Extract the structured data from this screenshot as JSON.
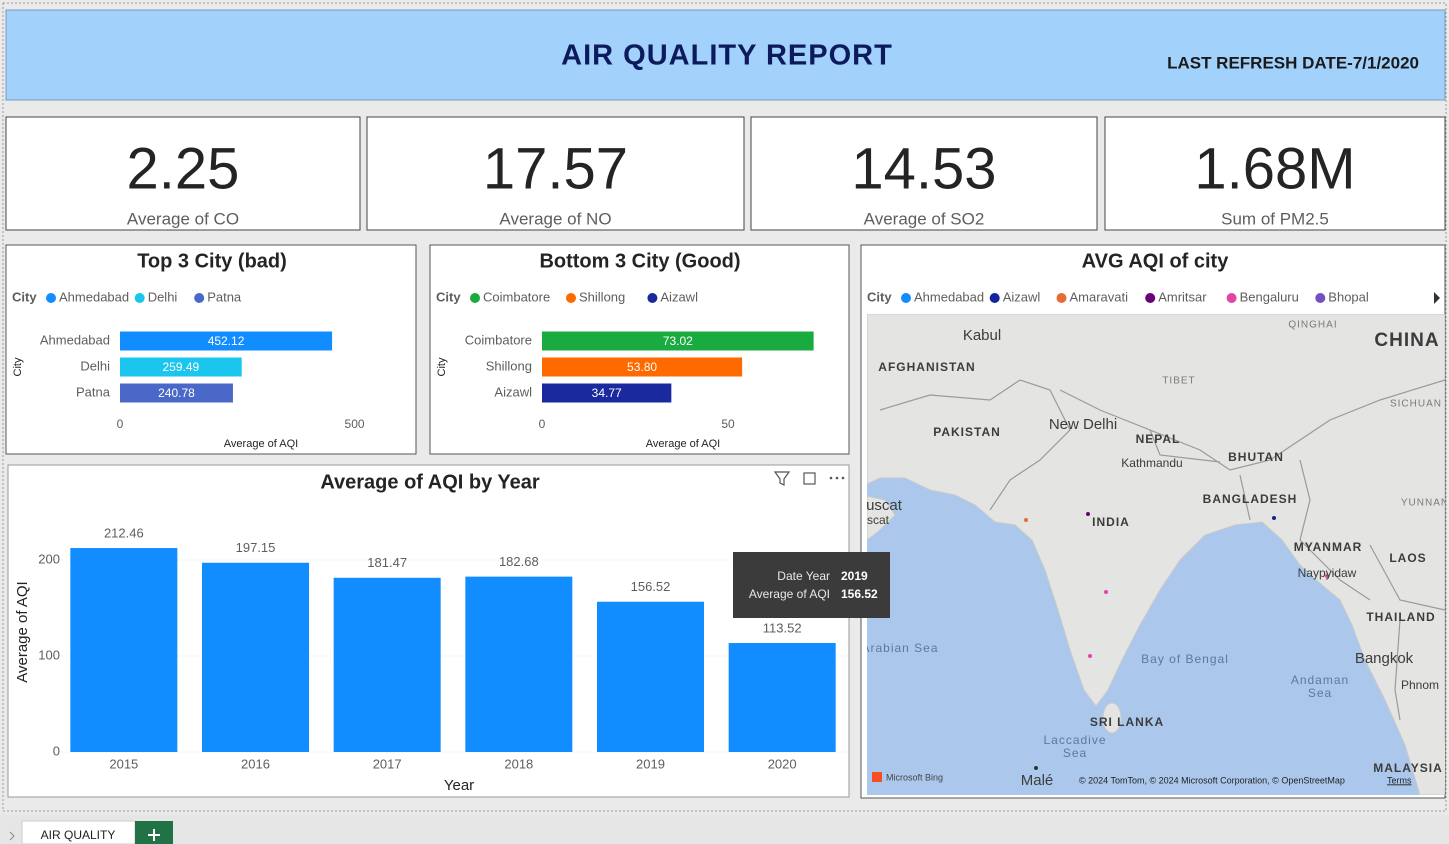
{
  "header": {
    "title": "AIR QUALITY REPORT",
    "refresh": "LAST REFRESH DATE-7/1/2020"
  },
  "cards": [
    {
      "value": "2.25",
      "label": "Average of CO"
    },
    {
      "value": "17.57",
      "label": "Average of NO"
    },
    {
      "value": "14.53",
      "label": "Average of SO2"
    },
    {
      "value": "1.68M",
      "label": "Sum of PM2.5"
    }
  ],
  "chart_data": [
    {
      "type": "hbar",
      "title": "Top 3 City (bad)",
      "legend_title": "City",
      "categories": [
        "Ahmedabad",
        "Delhi",
        "Patna"
      ],
      "values": [
        452.12,
        259.49,
        240.78
      ],
      "colors": [
        "#118DFF",
        "#1AC6EE",
        "#4A68C8"
      ],
      "xlim": [
        0,
        550
      ],
      "xticks": [
        0,
        500
      ],
      "xlabel": "Average of AQI",
      "ylabel": "City"
    },
    {
      "type": "hbar",
      "title": "Bottom 3 City (Good)",
      "legend_title": "City",
      "categories": [
        "Coimbatore",
        "Shillong",
        "Aizawl"
      ],
      "values": [
        73.02,
        53.8,
        34.77
      ],
      "value_labels": [
        "73.02",
        "53.80",
        "34.77"
      ],
      "colors": [
        "#1AAB40",
        "#FF6A00",
        "#1A2A9E"
      ],
      "xlim": [
        0,
        80
      ],
      "xticks": [
        0,
        50
      ],
      "xlabel": "Average of AQI",
      "ylabel": "City"
    },
    {
      "type": "bar",
      "title": "Average of AQI by Year",
      "categories": [
        "2015",
        "2016",
        "2017",
        "2018",
        "2019",
        "2020"
      ],
      "values": [
        212.46,
        197.15,
        181.47,
        182.68,
        156.52,
        113.52
      ],
      "color": "#118DFF",
      "ylim": [
        0,
        240
      ],
      "yticks": [
        0,
        100,
        200
      ],
      "grid": true,
      "xlabel": "Year",
      "ylabel": "Average of AQI",
      "tooltip": [
        {
          "label": "Date Year",
          "value": "2019"
        },
        {
          "label": "Average of AQI",
          "value": "156.52"
        }
      ]
    }
  ],
  "map": {
    "title": "AVG AQI of city",
    "legend_title": "City",
    "legend": [
      {
        "name": "Ahmedabad",
        "color": "#118DFF"
      },
      {
        "name": "Aizawl",
        "color": "#12239E"
      },
      {
        "name": "Amaravati",
        "color": "#E66C37"
      },
      {
        "name": "Amritsar",
        "color": "#6B007B"
      },
      {
        "name": "Bengaluru",
        "color": "#E044A7"
      },
      {
        "name": "Bhopal",
        "color": "#744EC2"
      }
    ],
    "labels": [
      "Kabul",
      "AFGHANISTAN",
      "QINGHAI",
      "CHINA",
      "TIBET",
      "SICHUAN",
      "PAKISTAN",
      "New Delhi",
      "NEPAL",
      "Kathmandu",
      "BHUTAN",
      "BANGLADESH",
      "YUNNAN",
      "uscat",
      "scat",
      "INDIA",
      "MYANMAR",
      "LAOS",
      "Naypyidaw",
      "THAILAND",
      "Arabian Sea",
      "Bay of Bengal",
      "Bangkok",
      "Andaman",
      "Sea",
      "Phnom",
      "SRI LANKA",
      "Laccadive",
      "Sea",
      "Malé",
      "MALAYSIA"
    ],
    "provider": "Microsoft Bing",
    "attribution": "© 2024 TomTom, © 2024 Microsoft Corporation, © OpenStreetMap",
    "terms": "Terms"
  },
  "tabs": {
    "active": "AIR QUALITY"
  }
}
